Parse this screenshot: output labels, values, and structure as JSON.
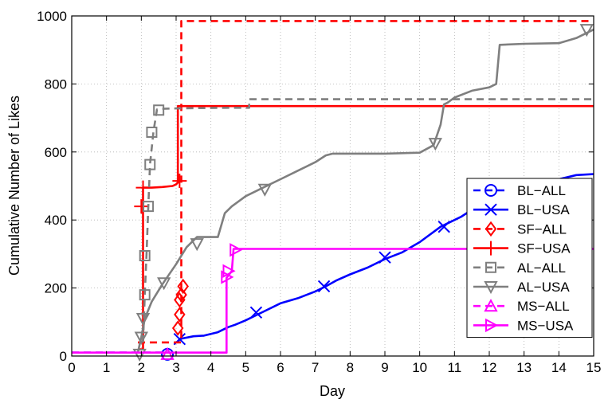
{
  "chart_data": {
    "type": "line",
    "title": "",
    "xlabel": "Day",
    "ylabel": "Cumulative Number of Likes",
    "xlim": [
      0,
      15
    ],
    "ylim": [
      0,
      1000
    ],
    "xticks": [
      "0",
      "1",
      "2",
      "3",
      "4",
      "5",
      "6",
      "7",
      "8",
      "9",
      "10",
      "11",
      "12",
      "13",
      "14",
      "15"
    ],
    "yticks": [
      "0",
      "200",
      "400",
      "600",
      "800",
      "1000"
    ],
    "grid": true,
    "legend_position": "lower-right",
    "series": [
      {
        "name": "BL−ALL",
        "color": "#0000ff",
        "dash": "dashed",
        "marker": "circle",
        "x": [
          0,
          2.8,
          2.8
        ],
        "y": [
          10,
          10,
          10
        ],
        "marker_x": [
          2.75
        ],
        "marker_y": [
          5
        ]
      },
      {
        "name": "BL−USA",
        "color": "#0000ff",
        "dash": "solid",
        "marker": "x",
        "x": [
          3.05,
          3.1,
          3.5,
          3.8,
          4.0,
          4.2,
          4.5,
          4.7,
          5.0,
          5.5,
          6.0,
          6.5,
          7.0,
          7.3,
          7.6,
          8.0,
          8.5,
          9.0,
          9.5,
          10.0,
          10.6,
          11.2,
          11.5,
          12.0,
          12.5,
          13.0,
          13.5,
          14.0,
          14.5,
          15.0
        ],
        "y": [
          40,
          50,
          58,
          60,
          65,
          70,
          85,
          92,
          105,
          130,
          155,
          170,
          190,
          205,
          222,
          240,
          260,
          285,
          305,
          335,
          380,
          410,
          430,
          450,
          470,
          490,
          505,
          520,
          532,
          535
        ],
        "marker_x": [
          3.1,
          5.3,
          7.25,
          9.0,
          10.7,
          12.3
        ],
        "marker_y": [
          50,
          128,
          205,
          290,
          380,
          440
        ]
      },
      {
        "name": "SF−ALL",
        "color": "#ff0000",
        "dash": "dashed",
        "marker": "diamond",
        "x": [
          1.9,
          3.1,
          3.15,
          3.15,
          15
        ],
        "y": [
          40,
          40,
          40,
          985,
          985
        ],
        "marker_x": [
          3.05,
          3.1,
          3.1,
          3.15,
          3.2
        ],
        "marker_y": [
          82,
          122,
          165,
          180,
          205
        ]
      },
      {
        "name": "SF−USA",
        "color": "#ff0000",
        "dash": "solid",
        "marker": "plus",
        "x": [
          1.9,
          2.05,
          2.05,
          2.3,
          2.6,
          2.9,
          3.0,
          3.05,
          3.05,
          15
        ],
        "y": [
          20,
          20,
          495,
          495,
          497,
          500,
          505,
          510,
          735,
          735
        ],
        "marker_x": [
          2.05,
          3.1,
          2.0
        ],
        "marker_y": [
          495,
          515,
          440
        ]
      },
      {
        "name": "AL−ALL",
        "color": "#7f7f7f",
        "dash": "dashed",
        "marker": "square",
        "x": [
          2.05,
          2.1,
          2.15,
          2.2,
          2.25,
          2.35,
          2.45,
          2.6,
          3.0,
          4.5,
          5.1,
          5.1,
          15
        ],
        "y": [
          40,
          180,
          300,
          440,
          565,
          660,
          725,
          727,
          728,
          730,
          730,
          755,
          755
        ],
        "marker_x": [
          2.1,
          2.1,
          2.2,
          2.25,
          2.3,
          2.5
        ],
        "marker_y": [
          180,
          295,
          440,
          563,
          658,
          723
        ]
      },
      {
        "name": "AL−USA",
        "color": "#7f7f7f",
        "dash": "solid",
        "marker": "triangle-down",
        "x": [
          1.9,
          2.0,
          2.1,
          2.3,
          2.6,
          3.0,
          3.3,
          3.6,
          4.0,
          4.2,
          4.4,
          4.6,
          5.0,
          5.5,
          6.0,
          6.5,
          7.0,
          7.3,
          7.5,
          8.0,
          9.0,
          10.0,
          10.4,
          10.6,
          10.7,
          10.8,
          11.0,
          11.5,
          12.0,
          12.2,
          12.3,
          13.0,
          14.0,
          14.5,
          15.0
        ],
        "y": [
          10,
          55,
          110,
          160,
          210,
          270,
          320,
          350,
          350,
          350,
          420,
          440,
          470,
          495,
          520,
          545,
          570,
          590,
          595,
          595,
          595,
          598,
          620,
          680,
          740,
          745,
          760,
          780,
          790,
          800,
          915,
          918,
          920,
          935,
          960
        ],
        "marker_x": [
          1.95,
          2.0,
          2.05,
          2.65,
          3.6,
          5.55,
          10.45,
          14.8
        ],
        "marker_y": [
          5,
          55,
          110,
          215,
          330,
          490,
          625,
          960
        ]
      },
      {
        "name": "MS−ALL",
        "color": "#ff00ff",
        "dash": "dashed",
        "marker": "triangle-up",
        "x": [
          0,
          2.8
        ],
        "y": [
          10,
          10
        ],
        "marker_x": [
          2.75
        ],
        "marker_y": [
          5
        ]
      },
      {
        "name": "MS−USA",
        "color": "#ff00ff",
        "dash": "solid",
        "marker": "triangle-right",
        "x": [
          0,
          4.45,
          4.45,
          4.6,
          4.65,
          15
        ],
        "y": [
          10,
          10,
          230,
          250,
          315,
          315
        ],
        "marker_x": [
          4.45,
          4.5,
          4.7
        ],
        "marker_y": [
          232,
          250,
          312
        ]
      }
    ]
  }
}
